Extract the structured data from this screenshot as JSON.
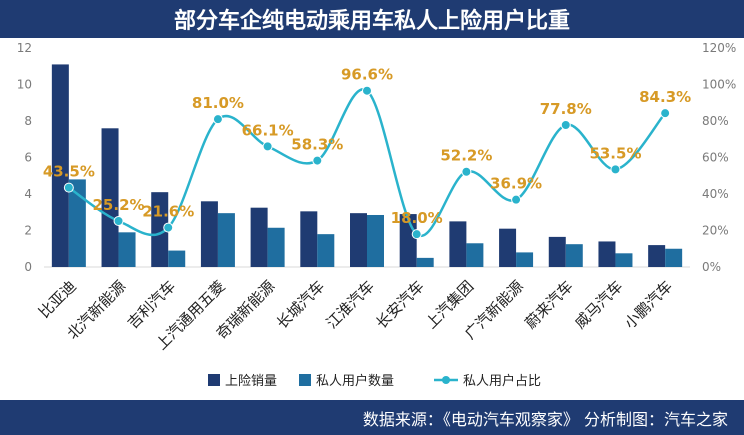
{
  "header": {
    "title": "部分车企纯电动乘用车私人上险用户比重"
  },
  "footer": {
    "source": "数据来源：《电动汽车观察家》 分析制图：汽车之家"
  },
  "colors": {
    "header_bg": "#1f3b72",
    "insurance_bar": "#1f3b72",
    "private_bar": "#1f6ea0",
    "ratio_line": "#2ab3cc",
    "ratio_label": "#d79a26"
  },
  "chart_data": {
    "type": "bar",
    "categories": [
      "比亚迪",
      "北汽新能源",
      "吉利汽车",
      "上汽通用五菱",
      "奇瑞新能源",
      "长城汽车",
      "江淮汽车",
      "长安汽车",
      "上汽集团",
      "广汽新能源",
      "蔚来汽车",
      "威马汽车",
      "小鹏汽车"
    ],
    "series": [
      {
        "name": "上险销量",
        "type": "bar",
        "axis": "left",
        "values": [
          11.1,
          7.6,
          4.1,
          3.6,
          3.25,
          3.05,
          2.95,
          2.9,
          2.5,
          2.1,
          1.65,
          1.4,
          1.2
        ]
      },
      {
        "name": "私人用户数量",
        "type": "bar",
        "axis": "left",
        "values": [
          4.8,
          1.9,
          0.9,
          2.95,
          2.15,
          1.8,
          2.85,
          0.5,
          1.3,
          0.8,
          1.25,
          0.75,
          1.0
        ]
      },
      {
        "name": "私人用户占比",
        "type": "line",
        "axis": "right",
        "values": [
          43.5,
          25.2,
          21.6,
          81.0,
          66.1,
          58.3,
          96.6,
          18.0,
          52.2,
          36.9,
          77.8,
          53.5,
          84.3
        ],
        "labels": [
          "43.5%",
          "25.2%",
          "21.6%",
          "81.0%",
          "66.1%",
          "58.3%",
          "96.6%",
          "18.0%",
          "52.2%",
          "36.9%",
          "77.8%",
          "53.5%",
          "84.3%"
        ]
      }
    ],
    "y_left": {
      "min": 0,
      "max": 12,
      "ticks": [
        "0",
        "2",
        "4",
        "6",
        "8",
        "10",
        "12"
      ]
    },
    "y_right": {
      "min": 0,
      "max": 120,
      "ticks": [
        "0%",
        "20%",
        "40%",
        "60%",
        "80%",
        "100%",
        "120%"
      ]
    },
    "grid": false,
    "legend": "bottom"
  }
}
